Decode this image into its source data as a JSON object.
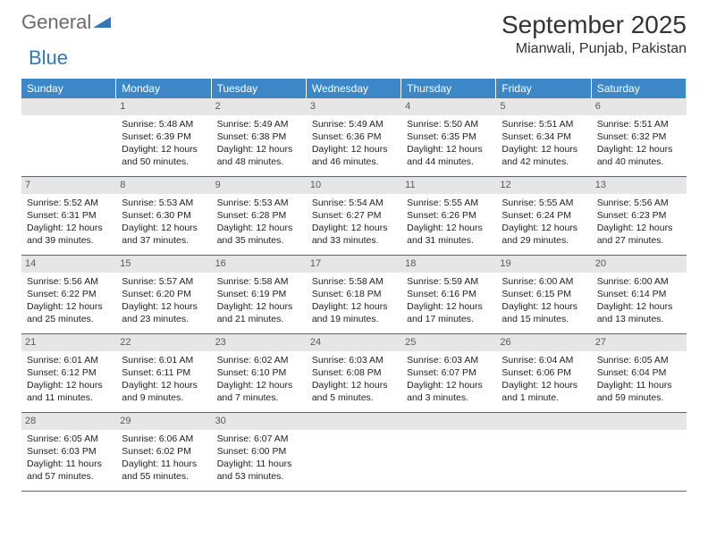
{
  "logo": {
    "word1": "General",
    "word2": "Blue"
  },
  "title": "September 2025",
  "location": "Mianwali, Punjab, Pakistan",
  "colors": {
    "header_bg": "#3c87c8",
    "header_text": "#ffffff",
    "rule": "#2f6fa8",
    "daynum_bg": "#e6e6e6",
    "daynum_text": "#5a5a5a",
    "body_text": "#222222",
    "logo_grey": "#6b6b6b",
    "logo_blue": "#2f78be"
  },
  "weekdays": [
    "Sunday",
    "Monday",
    "Tuesday",
    "Wednesday",
    "Thursday",
    "Friday",
    "Saturday"
  ],
  "cells": [
    {
      "blank": true
    },
    {
      "n": "1",
      "sr": "Sunrise: 5:48 AM",
      "ss": "Sunset: 6:39 PM",
      "d1": "Daylight: 12 hours",
      "d2": "and 50 minutes."
    },
    {
      "n": "2",
      "sr": "Sunrise: 5:49 AM",
      "ss": "Sunset: 6:38 PM",
      "d1": "Daylight: 12 hours",
      "d2": "and 48 minutes."
    },
    {
      "n": "3",
      "sr": "Sunrise: 5:49 AM",
      "ss": "Sunset: 6:36 PM",
      "d1": "Daylight: 12 hours",
      "d2": "and 46 minutes."
    },
    {
      "n": "4",
      "sr": "Sunrise: 5:50 AM",
      "ss": "Sunset: 6:35 PM",
      "d1": "Daylight: 12 hours",
      "d2": "and 44 minutes."
    },
    {
      "n": "5",
      "sr": "Sunrise: 5:51 AM",
      "ss": "Sunset: 6:34 PM",
      "d1": "Daylight: 12 hours",
      "d2": "and 42 minutes."
    },
    {
      "n": "6",
      "sr": "Sunrise: 5:51 AM",
      "ss": "Sunset: 6:32 PM",
      "d1": "Daylight: 12 hours",
      "d2": "and 40 minutes."
    },
    {
      "n": "7",
      "sr": "Sunrise: 5:52 AM",
      "ss": "Sunset: 6:31 PM",
      "d1": "Daylight: 12 hours",
      "d2": "and 39 minutes."
    },
    {
      "n": "8",
      "sr": "Sunrise: 5:53 AM",
      "ss": "Sunset: 6:30 PM",
      "d1": "Daylight: 12 hours",
      "d2": "and 37 minutes."
    },
    {
      "n": "9",
      "sr": "Sunrise: 5:53 AM",
      "ss": "Sunset: 6:28 PM",
      "d1": "Daylight: 12 hours",
      "d2": "and 35 minutes."
    },
    {
      "n": "10",
      "sr": "Sunrise: 5:54 AM",
      "ss": "Sunset: 6:27 PM",
      "d1": "Daylight: 12 hours",
      "d2": "and 33 minutes."
    },
    {
      "n": "11",
      "sr": "Sunrise: 5:55 AM",
      "ss": "Sunset: 6:26 PM",
      "d1": "Daylight: 12 hours",
      "d2": "and 31 minutes."
    },
    {
      "n": "12",
      "sr": "Sunrise: 5:55 AM",
      "ss": "Sunset: 6:24 PM",
      "d1": "Daylight: 12 hours",
      "d2": "and 29 minutes."
    },
    {
      "n": "13",
      "sr": "Sunrise: 5:56 AM",
      "ss": "Sunset: 6:23 PM",
      "d1": "Daylight: 12 hours",
      "d2": "and 27 minutes."
    },
    {
      "n": "14",
      "sr": "Sunrise: 5:56 AM",
      "ss": "Sunset: 6:22 PM",
      "d1": "Daylight: 12 hours",
      "d2": "and 25 minutes."
    },
    {
      "n": "15",
      "sr": "Sunrise: 5:57 AM",
      "ss": "Sunset: 6:20 PM",
      "d1": "Daylight: 12 hours",
      "d2": "and 23 minutes."
    },
    {
      "n": "16",
      "sr": "Sunrise: 5:58 AM",
      "ss": "Sunset: 6:19 PM",
      "d1": "Daylight: 12 hours",
      "d2": "and 21 minutes."
    },
    {
      "n": "17",
      "sr": "Sunrise: 5:58 AM",
      "ss": "Sunset: 6:18 PM",
      "d1": "Daylight: 12 hours",
      "d2": "and 19 minutes."
    },
    {
      "n": "18",
      "sr": "Sunrise: 5:59 AM",
      "ss": "Sunset: 6:16 PM",
      "d1": "Daylight: 12 hours",
      "d2": "and 17 minutes."
    },
    {
      "n": "19",
      "sr": "Sunrise: 6:00 AM",
      "ss": "Sunset: 6:15 PM",
      "d1": "Daylight: 12 hours",
      "d2": "and 15 minutes."
    },
    {
      "n": "20",
      "sr": "Sunrise: 6:00 AM",
      "ss": "Sunset: 6:14 PM",
      "d1": "Daylight: 12 hours",
      "d2": "and 13 minutes."
    },
    {
      "n": "21",
      "sr": "Sunrise: 6:01 AM",
      "ss": "Sunset: 6:12 PM",
      "d1": "Daylight: 12 hours",
      "d2": "and 11 minutes."
    },
    {
      "n": "22",
      "sr": "Sunrise: 6:01 AM",
      "ss": "Sunset: 6:11 PM",
      "d1": "Daylight: 12 hours",
      "d2": "and 9 minutes."
    },
    {
      "n": "23",
      "sr": "Sunrise: 6:02 AM",
      "ss": "Sunset: 6:10 PM",
      "d1": "Daylight: 12 hours",
      "d2": "and 7 minutes."
    },
    {
      "n": "24",
      "sr": "Sunrise: 6:03 AM",
      "ss": "Sunset: 6:08 PM",
      "d1": "Daylight: 12 hours",
      "d2": "and 5 minutes."
    },
    {
      "n": "25",
      "sr": "Sunrise: 6:03 AM",
      "ss": "Sunset: 6:07 PM",
      "d1": "Daylight: 12 hours",
      "d2": "and 3 minutes."
    },
    {
      "n": "26",
      "sr": "Sunrise: 6:04 AM",
      "ss": "Sunset: 6:06 PM",
      "d1": "Daylight: 12 hours",
      "d2": "and 1 minute."
    },
    {
      "n": "27",
      "sr": "Sunrise: 6:05 AM",
      "ss": "Sunset: 6:04 PM",
      "d1": "Daylight: 11 hours",
      "d2": "and 59 minutes."
    },
    {
      "n": "28",
      "sr": "Sunrise: 6:05 AM",
      "ss": "Sunset: 6:03 PM",
      "d1": "Daylight: 11 hours",
      "d2": "and 57 minutes."
    },
    {
      "n": "29",
      "sr": "Sunrise: 6:06 AM",
      "ss": "Sunset: 6:02 PM",
      "d1": "Daylight: 11 hours",
      "d2": "and 55 minutes."
    },
    {
      "n": "30",
      "sr": "Sunrise: 6:07 AM",
      "ss": "Sunset: 6:00 PM",
      "d1": "Daylight: 11 hours",
      "d2": "and 53 minutes."
    },
    {
      "blank": true
    },
    {
      "blank": true
    },
    {
      "blank": true
    },
    {
      "blank": true
    }
  ]
}
